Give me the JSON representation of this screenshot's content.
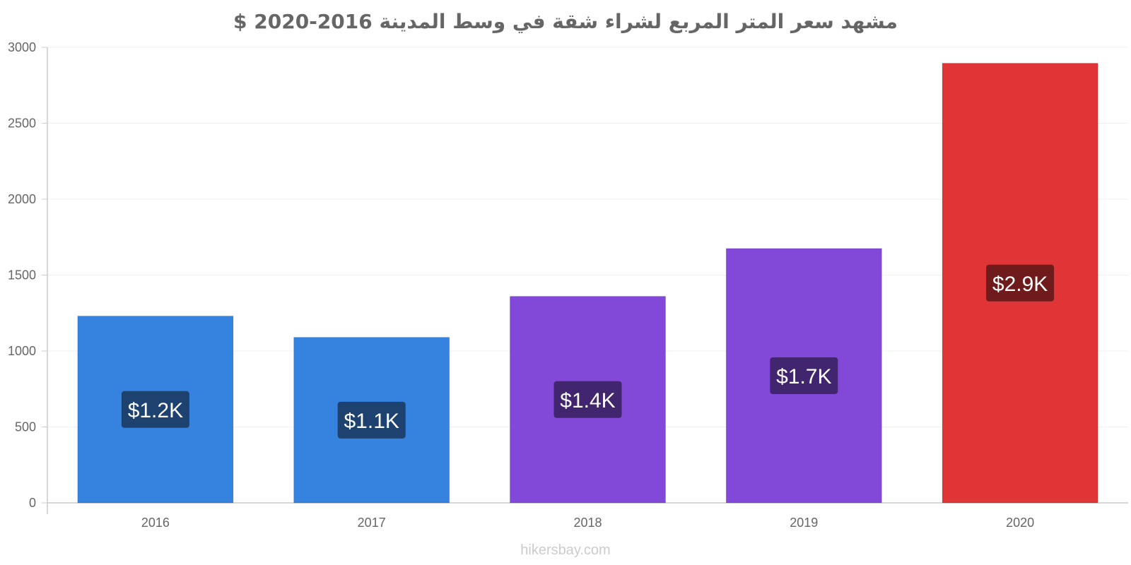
{
  "chart_data": {
    "type": "bar",
    "title": "مشهد سعر المتر المربع لشراء شقة في وسط المدينة 2016-2020 $",
    "categories": [
      "2016",
      "2017",
      "2018",
      "2019",
      "2020"
    ],
    "values": [
      1230,
      1090,
      1360,
      1675,
      2895
    ],
    "value_labels": [
      "$1.2K",
      "$1.1K",
      "$1.4K",
      "$1.7K",
      "$2.9K"
    ],
    "bar_colors": [
      "#3583de",
      "#3583de",
      "#8249d8",
      "#8249d8",
      "#e03536"
    ],
    "label_bg_colors": [
      "#1d4270",
      "#1d4270",
      "#41256f",
      "#41256f",
      "#701b1b"
    ],
    "ylim": [
      0,
      3000
    ],
    "yticks": [
      0,
      500,
      1000,
      1500,
      2000,
      2500,
      3000
    ],
    "grid": true,
    "xlabel": "",
    "ylabel": ""
  },
  "watermark": "hikersbay.com"
}
